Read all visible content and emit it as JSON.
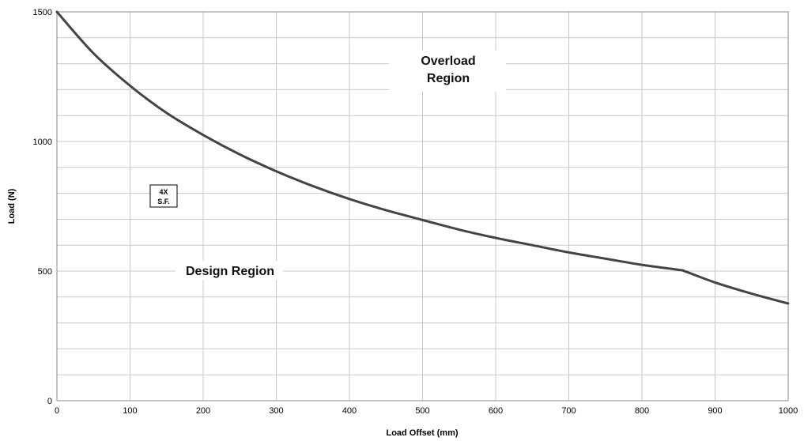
{
  "chart_data": {
    "type": "line",
    "title": "",
    "xlabel": "Load Offset (mm)",
    "ylabel": "Load (N)",
    "xlim": [
      0,
      1000
    ],
    "ylim": [
      0,
      1500
    ],
    "x_ticks": [
      "0",
      "100",
      "200",
      "300",
      "400",
      "500",
      "600",
      "700",
      "800",
      "900",
      "1000"
    ],
    "y_ticks": [
      "0",
      "500",
      "1000",
      "1500"
    ],
    "grid": true,
    "legend": "none",
    "line_color": "#444444",
    "grid_color": "#c8c8c8",
    "series": [
      {
        "x": [
          0,
          50,
          100,
          150,
          200,
          250,
          300,
          350,
          400,
          450,
          500,
          550,
          600,
          650,
          700,
          750,
          800,
          850,
          860,
          900,
          950,
          1000
        ],
        "y": [
          1500,
          1340,
          1215,
          1110,
          1025,
          950,
          885,
          828,
          778,
          735,
          697,
          660,
          628,
          600,
          572,
          548,
          524,
          505,
          498,
          456,
          413,
          375
        ]
      }
    ],
    "annotations": {
      "overload_region": [
        "Overload",
        "Region"
      ],
      "design_region": "Design Region",
      "safety_factor": [
        "4X",
        "S.F."
      ]
    }
  }
}
